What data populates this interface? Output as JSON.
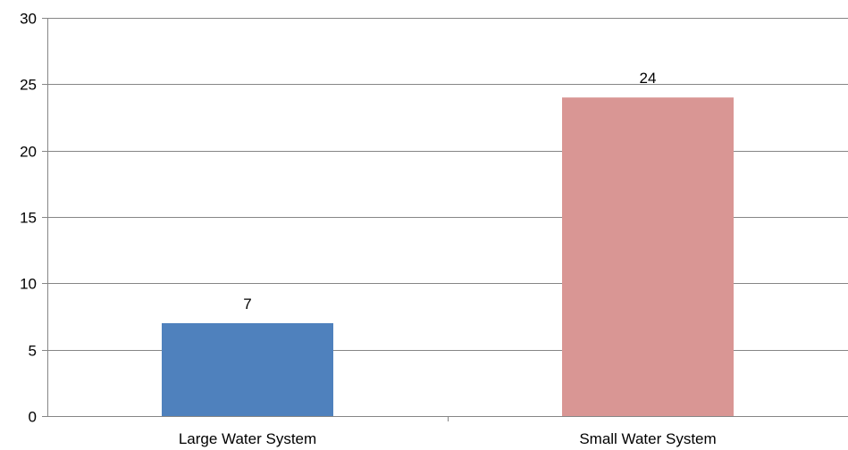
{
  "chart_data": {
    "type": "bar",
    "categories": [
      "Large Water System",
      "Small Water System"
    ],
    "values": [
      7,
      24
    ],
    "data_labels": [
      "7",
      "24"
    ],
    "colors": [
      "#4f81bd",
      "#d99694"
    ],
    "title": "",
    "xlabel": "",
    "ylabel": "",
    "ylim": [
      0,
      30
    ],
    "yticks": [
      0,
      5,
      10,
      15,
      20,
      25,
      30
    ],
    "ytick_labels": [
      "0",
      "5",
      "10",
      "15",
      "20",
      "25",
      "30"
    ],
    "grid": true,
    "legend": "none"
  }
}
